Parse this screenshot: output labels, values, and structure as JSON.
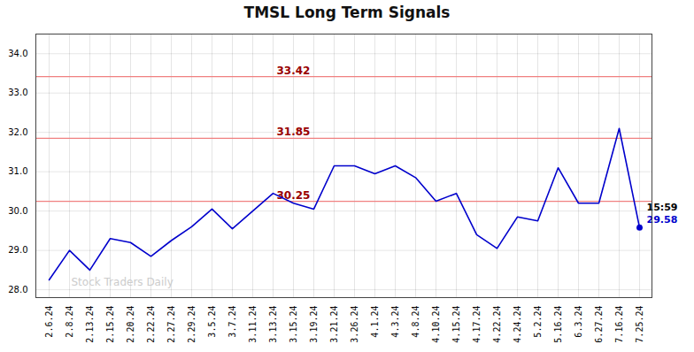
{
  "chart_data": {
    "type": "line",
    "title": "TMSL Long Term Signals",
    "categories": [
      "2.6.24",
      "2.8.24",
      "2.13.24",
      "2.15.24",
      "2.20.24",
      "2.22.24",
      "2.27.24",
      "2.29.24",
      "3.5.24",
      "3.7.24",
      "3.11.24",
      "3.13.24",
      "3.15.24",
      "3.19.24",
      "3.21.24",
      "3.26.24",
      "4.1.24",
      "4.3.24",
      "4.8.24",
      "4.10.24",
      "4.15.24",
      "4.17.24",
      "4.22.24",
      "4.24.24",
      "5.2.24",
      "5.16.24",
      "6.3.24",
      "6.27.24",
      "7.16.24",
      "7.25.24"
    ],
    "values": [
      28.25,
      29.0,
      28.5,
      29.3,
      29.2,
      28.85,
      29.25,
      29.6,
      30.05,
      29.55,
      30.0,
      30.45,
      30.2,
      30.05,
      31.15,
      31.15,
      30.95,
      31.15,
      30.85,
      30.25,
      30.45,
      29.4,
      29.05,
      29.85,
      29.75,
      31.1,
      30.2,
      30.2,
      32.1,
      29.58
    ],
    "color": "#0000cc",
    "ylim": [
      27.8,
      34.5
    ],
    "yticks": [
      28,
      29,
      30,
      31,
      32,
      33,
      34
    ],
    "grid": true,
    "reference_lines": {
      "color": "#f08080",
      "label_color": "#990000",
      "label_at": "3.15.24",
      "lines": [
        {
          "value": 30.25,
          "label": "30.25"
        },
        {
          "value": 31.85,
          "label": "31.85"
        },
        {
          "value": 33.42,
          "label": "33.42"
        }
      ]
    },
    "annotations": [
      {
        "text": "15:59",
        "color": "#000000"
      },
      {
        "text": "29.58",
        "color": "#0000cc"
      }
    ],
    "watermark": {
      "text": "Stock Traders Daily",
      "color": "#cccccc"
    }
  }
}
